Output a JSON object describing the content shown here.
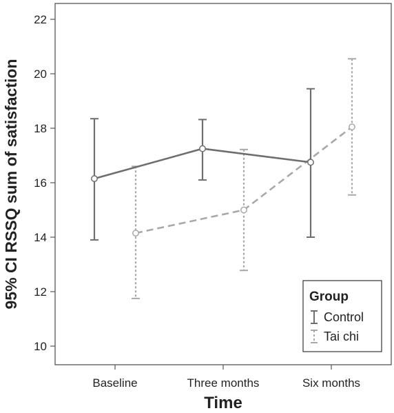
{
  "chart_data": {
    "type": "line",
    "xlabel": "Time",
    "ylabel": "95% CI RSSQ sum of satisfaction",
    "categories": [
      "Baseline",
      "Three months",
      "Six months"
    ],
    "ylim": [
      9,
      22.5
    ],
    "yticks": [
      10,
      12,
      14,
      16,
      18,
      20,
      22
    ],
    "grid": false,
    "legend": {
      "title": "Group",
      "position": "bottom-right"
    },
    "series": [
      {
        "name": "Control",
        "color": "#6e6e6e",
        "line_style": "solid",
        "values": [
          16.15,
          17.25,
          16.75
        ],
        "ci_lower": [
          13.9,
          16.1,
          14.0
        ],
        "ci_upper": [
          18.35,
          18.32,
          19.45
        ]
      },
      {
        "name": "Tai chi",
        "color": "#a8a8a8",
        "line_style": "dashed",
        "values": [
          14.15,
          15.0,
          18.05
        ],
        "ci_lower": [
          11.75,
          12.78,
          15.55
        ],
        "ci_upper": [
          16.6,
          17.22,
          20.55
        ]
      }
    ]
  }
}
